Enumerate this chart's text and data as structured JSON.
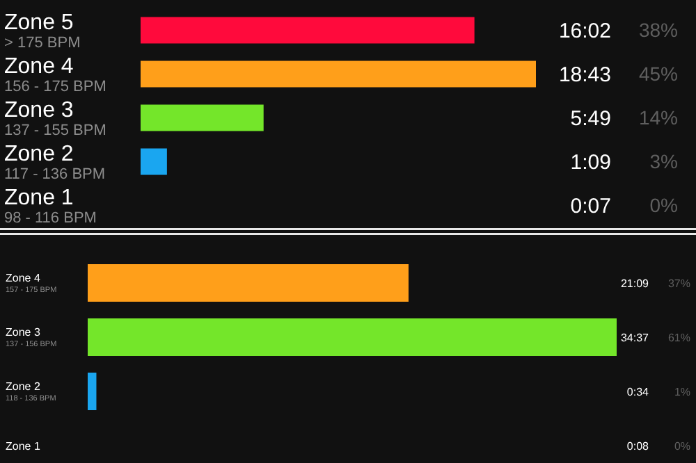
{
  "chart_data": [
    {
      "type": "bar",
      "orientation": "horizontal",
      "categories": [
        "Zone 5\n> 175 BPM",
        "Zone 4\n156 - 175 BPM",
        "Zone 3\n137 - 155 BPM",
        "Zone 2\n117 - 136 BPM",
        "Zone 1\n98 - 116 BPM"
      ],
      "values": [
        38,
        45,
        14,
        3,
        0
      ],
      "colors": [
        "#ff0a3c",
        "#ff9f1a",
        "#74e62a",
        "#1aa6f0",
        "#8a8a8a"
      ],
      "value_labels": [
        "38%",
        "45%",
        "14%",
        "3%",
        "0%"
      ],
      "annotations": [
        "16:02",
        "18:43",
        "5:49",
        "1:09",
        "0:07"
      ]
    },
    {
      "type": "bar",
      "orientation": "horizontal",
      "categories": [
        "Zone 4\n157 - 175 BPM",
        "Zone 3\n137 - 156 BPM",
        "Zone 2\n118 - 136 BPM",
        "Zone 1"
      ],
      "values": [
        37,
        61,
        1,
        0
      ],
      "colors": [
        "#ff9f1a",
        "#74e62a",
        "#1aa6f0",
        "#8a8a8a"
      ],
      "value_labels": [
        "37%",
        "61%",
        "1%",
        "0%"
      ],
      "annotations": [
        "21:09",
        "34:37",
        "0:34",
        "0:08"
      ]
    }
  ]
}
